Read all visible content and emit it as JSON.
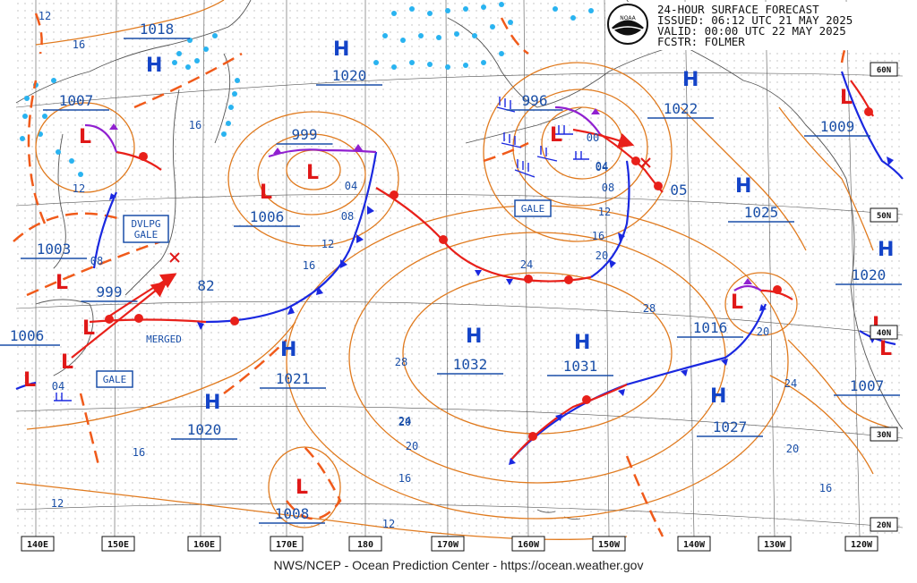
{
  "header": {
    "line1": "24-HOUR SURFACE FORECAST",
    "line2": "ISSUED: 06:12 UTC 21 MAY 2025",
    "line3": "VALID:  00:00 UTC 22 MAY 2025",
    "line4": "FCSTR:  FOLMER"
  },
  "logo_text": "NOAA",
  "footer": "NWS/NCEP - Ocean Prediction Center - https://ocean.weather.gov",
  "lon_labels": [
    "140E",
    "150E",
    "160E",
    "170E",
    "180",
    "170W",
    "160W",
    "150W",
    "140W",
    "130W",
    "120W"
  ],
  "lat_labels": [
    "60N",
    "50N",
    "40N",
    "30N",
    "20N"
  ],
  "pressure_labels": [
    "1018",
    "1007",
    "1006",
    "1003",
    "999",
    "1020",
    "999",
    "1006",
    "1021",
    "1020",
    "1008",
    "1032",
    "1031",
    "996",
    "1022",
    "1025",
    "1009",
    "1020",
    "1016",
    "1027",
    "1007",
    "82",
    "05"
  ],
  "isobar_labels": [
    "12",
    "16",
    "16",
    "12",
    "08",
    "04",
    "04",
    "08",
    "12",
    "16",
    "12",
    "16",
    "20",
    "24",
    "28",
    "04",
    "00",
    "04",
    "08",
    "12",
    "16",
    "20",
    "24",
    "28",
    "20",
    "24",
    "20",
    "16",
    "20",
    "16",
    "12"
  ],
  "box_labels": [
    "GALE",
    "DVLPG\nGALE",
    "GALE"
  ],
  "text_labels": [
    "MERGED"
  ],
  "colors": {
    "isobar": "#e07a1e",
    "warm_front": "#e8201a",
    "cold_front": "#1a28e0",
    "occluded": "#9020d0",
    "ice": "#29b3f0",
    "stationary_dash": "#f05a1a",
    "high": "#1444c8",
    "low": "#e01818"
  }
}
